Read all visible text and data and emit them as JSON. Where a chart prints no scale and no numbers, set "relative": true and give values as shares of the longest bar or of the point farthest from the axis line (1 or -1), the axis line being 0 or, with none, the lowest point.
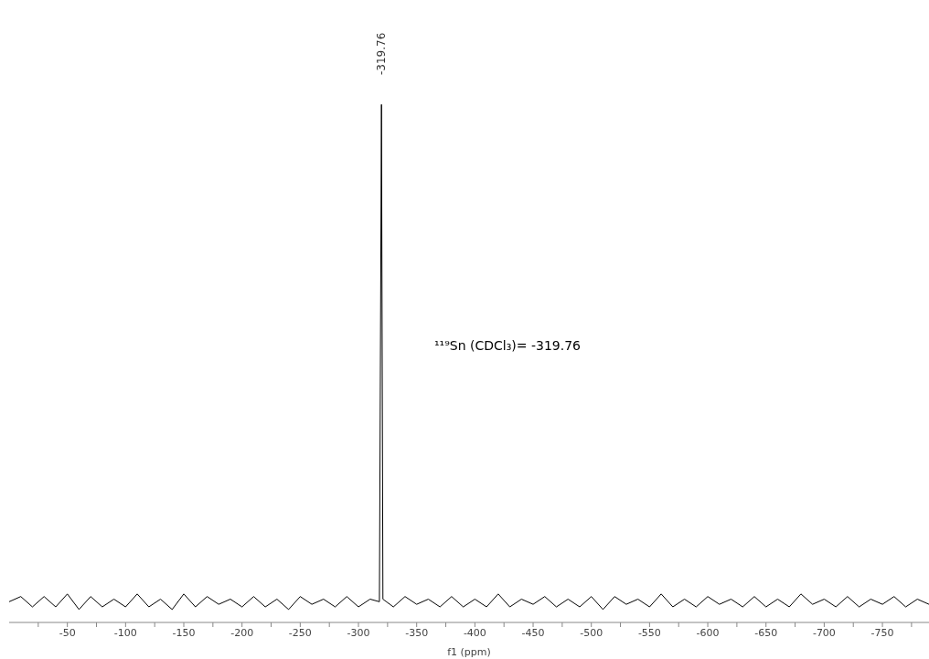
{
  "chart_data": {
    "type": "line",
    "relative": true,
    "xlabel": "f1 (ppm)",
    "xlim": [
      0,
      -790
    ],
    "xticks": [
      {
        "value": -25,
        "label": null
      },
      -50,
      {
        "value": -75,
        "label": null
      },
      -100,
      {
        "value": -125,
        "label": null
      },
      -150,
      {
        "value": -175,
        "label": null
      },
      -200,
      {
        "value": -225,
        "label": null
      },
      -250,
      {
        "value": -275,
        "label": null
      },
      -300,
      {
        "value": -325,
        "label": null
      },
      -350,
      {
        "value": -375,
        "label": null
      },
      -400,
      {
        "value": -425,
        "label": null
      },
      -450,
      {
        "value": -475,
        "label": null
      },
      -500,
      {
        "value": -525,
        "label": null
      },
      -550,
      {
        "value": -575,
        "label": null
      },
      -600,
      {
        "value": -625,
        "label": null
      },
      -650,
      {
        "value": -675,
        "label": null
      },
      -700,
      {
        "value": -725,
        "label": null
      },
      -750,
      {
        "value": -775,
        "label": null
      }
    ],
    "x": [
      0,
      -10,
      -20,
      -30,
      -40,
      -50,
      -60,
      -70,
      -80,
      -90,
      -100,
      -110,
      -120,
      -130,
      -140,
      -150,
      -160,
      -170,
      -180,
      -190,
      -200,
      -210,
      -220,
      -230,
      -240,
      -250,
      -260,
      -270,
      -280,
      -290,
      -300,
      -310,
      -318,
      -319.76,
      -321,
      -330,
      -340,
      -350,
      -360,
      -370,
      -380,
      -390,
      -400,
      -410,
      -420,
      -430,
      -440,
      -450,
      -460,
      -470,
      -480,
      -490,
      -500,
      -510,
      -520,
      -530,
      -540,
      -550,
      -560,
      -570,
      -580,
      -590,
      -600,
      -610,
      -620,
      -630,
      -640,
      -650,
      -660,
      -670,
      -680,
      -690,
      -700,
      -710,
      -720,
      -730,
      -740,
      -750,
      -760,
      -770,
      -780,
      -790
    ],
    "series": [
      {
        "color": "#000000",
        "values": [
          0.04,
          0.05,
          0.03,
          0.05,
          0.03,
          0.055,
          0.025,
          0.05,
          0.03,
          0.045,
          0.03,
          0.055,
          0.03,
          0.045,
          0.025,
          0.055,
          0.03,
          0.05,
          0.035,
          0.045,
          0.03,
          0.05,
          0.03,
          0.045,
          0.025,
          0.05,
          0.035,
          0.045,
          0.03,
          0.05,
          0.03,
          0.045,
          0.04,
          1,
          0.045,
          0.03,
          0.05,
          0.035,
          0.045,
          0.03,
          0.05,
          0.03,
          0.045,
          0.03,
          0.055,
          0.03,
          0.045,
          0.035,
          0.05,
          0.03,
          0.045,
          0.03,
          0.05,
          0.025,
          0.05,
          0.035,
          0.045,
          0.03,
          0.055,
          0.03,
          0.045,
          0.03,
          0.05,
          0.035,
          0.045,
          0.03,
          0.05,
          0.03,
          0.045,
          0.03,
          0.055,
          0.035,
          0.045,
          0.03,
          0.05,
          0.03,
          0.045,
          0.035,
          0.05,
          0.03,
          0.045,
          0.035
        ]
      }
    ],
    "marker": "none",
    "line_style": "solid",
    "grid": false,
    "legend": false,
    "annotations": [
      "-319.76",
      "¹¹⁹Sn (CDCl₃)= -319.76"
    ]
  }
}
